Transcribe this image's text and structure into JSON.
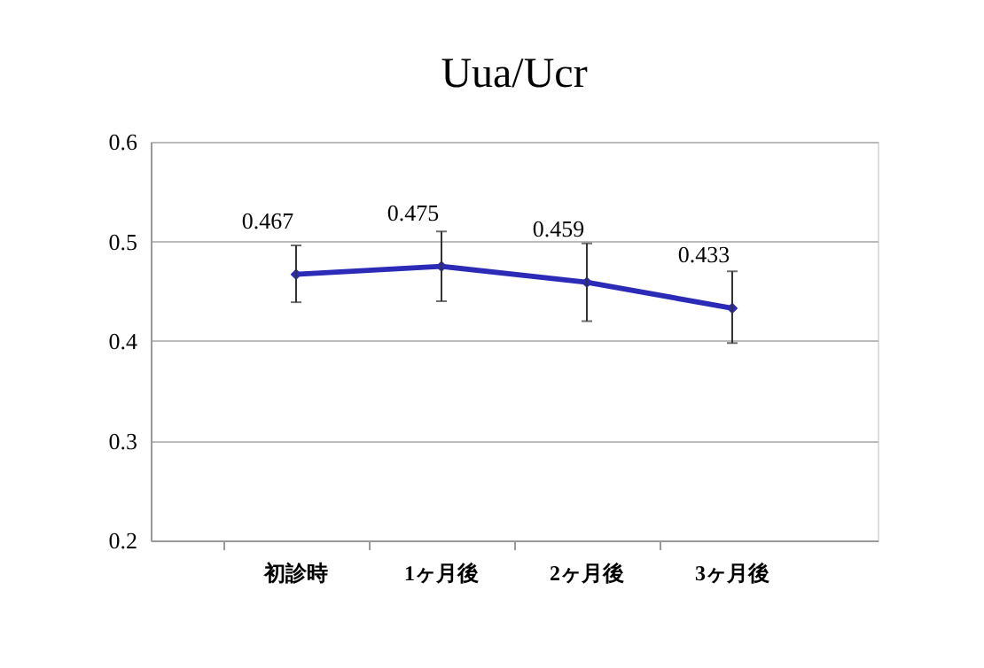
{
  "chart_data": {
    "type": "line",
    "title": "Uua/Ucr",
    "categories": [
      "初診時",
      "1ヶ月後",
      "2ヶ月後",
      "3ヶ月後"
    ],
    "series": [
      {
        "color": "#2b2bb8",
        "values": [
          0.467,
          0.475,
          0.459,
          0.433
        ],
        "errors": [
          [
            0.439,
            0.496
          ],
          [
            0.44,
            0.51
          ],
          [
            0.42,
            0.498
          ],
          [
            0.398,
            0.47
          ]
        ]
      }
    ],
    "ylim": [
      0.2,
      0.6
    ],
    "yticks": [
      0.2,
      0.3,
      0.4,
      0.5,
      0.6
    ],
    "grid": "y",
    "marker": "diamond",
    "line_style": "solid",
    "data_labels": true
  }
}
